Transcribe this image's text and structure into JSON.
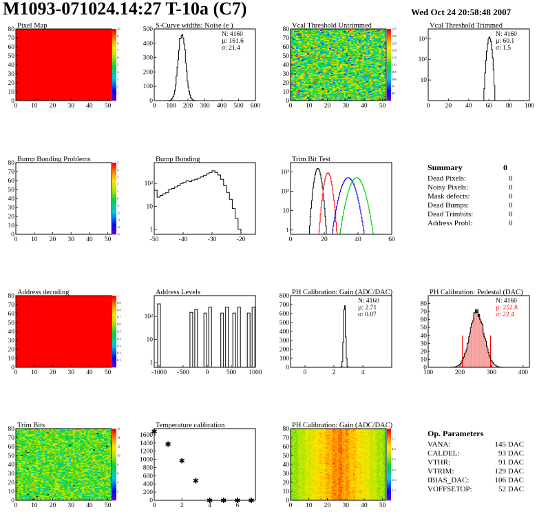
{
  "header": {
    "title": "M1093-071024.14:27 T-10a (C7)",
    "date": "Wed Oct 24 20:58:48 2007"
  },
  "summary": {
    "title": "Summary",
    "total": "0",
    "rows": [
      {
        "label": "Dead Pixels:",
        "value": "0"
      },
      {
        "label": "Noisy Pixels:",
        "value": "0"
      },
      {
        "label": "Mask defects:",
        "value": "0"
      },
      {
        "label": "Dead Bumps:",
        "value": "0"
      },
      {
        "label": "Dead Trimbits:",
        "value": "0"
      },
      {
        "label": "Address Probl:",
        "value": "0"
      }
    ]
  },
  "op_params": {
    "title": "Op. Parameters",
    "rows": [
      {
        "label": "VANA:",
        "value": "145 DAC"
      },
      {
        "label": "CALDEL:",
        "value": "93 DAC"
      },
      {
        "label": "VTHR:",
        "value": "91 DAC"
      },
      {
        "label": "VTRIM:",
        "value": "129 DAC"
      },
      {
        "label": "IBIAS_DAC:",
        "value": "106 DAC"
      },
      {
        "label": "VOFFSETOP:",
        "value": "52 DAC"
      }
    ]
  },
  "colors": {
    "red": "#ff0000",
    "blue": "#0000ff",
    "green": "#00c800",
    "pink": "#ffb0b0"
  },
  "chart_data": [
    {
      "id": "pixel-map",
      "type": "heatmap",
      "title": "Pixel Map",
      "xlim": [
        0,
        52
      ],
      "ylim": [
        0,
        80
      ],
      "xticks": [
        0,
        10,
        20,
        30,
        40,
        50
      ],
      "yticks": [
        0,
        10,
        20,
        30,
        40,
        50,
        60,
        70,
        80
      ],
      "palette": "uniform-red",
      "zlim": [
        0,
        10
      ],
      "zticks": [
        1,
        2,
        3,
        4,
        5,
        6,
        7,
        8,
        9,
        10
      ]
    },
    {
      "id": "scurve-widths",
      "type": "histogram",
      "title": "S-Curve widths: Noise (e )",
      "xlim": [
        0,
        600
      ],
      "ylim": [
        0,
        500
      ],
      "xticks": [
        0,
        100,
        200,
        300,
        400,
        500,
        600
      ],
      "yticks": [
        0,
        100,
        200,
        300,
        400,
        500
      ],
      "stats": [
        "N: 4160",
        "µ: 161.6",
        "σ: 21.4"
      ],
      "gauss": {
        "mean": 161.6,
        "sigma": 21.4,
        "peak": 480
      }
    },
    {
      "id": "vcal-untrimmed",
      "type": "heatmap",
      "title": "Vcal Threshold Untrimmed",
      "xlim": [
        0,
        52
      ],
      "ylim": [
        0,
        80
      ],
      "xticks": [
        0,
        10,
        20,
        30,
        40,
        50
      ],
      "yticks": [
        0,
        10,
        20,
        30,
        40,
        50,
        60,
        70,
        80
      ],
      "palette": "noise",
      "zlim": [
        85,
        135
      ],
      "zticks": [
        90,
        95,
        100,
        105,
        110,
        115,
        120,
        125,
        130,
        135
      ]
    },
    {
      "id": "vcal-trimmed",
      "type": "histogram",
      "title": "Vcal Threshold Trimmed",
      "log": true,
      "xlim": [
        0,
        100
      ],
      "ylim": [
        1,
        3000
      ],
      "xticks": [
        0,
        20,
        40,
        60,
        80,
        100
      ],
      "ytickvals": [
        10,
        100,
        1000
      ],
      "yticklabels": [
        "10",
        "10²",
        "10³"
      ],
      "stats": [
        "N: 4160",
        "µ: 60.1",
        "σ: 1.5"
      ],
      "gauss": {
        "mean": 60.1,
        "sigma": 1.5,
        "peak": 1200
      }
    },
    {
      "id": "bump-problems",
      "type": "heatmap",
      "title": "Bump Bonding Problems",
      "xlim": [
        0,
        52
      ],
      "ylim": [
        0,
        80
      ],
      "xticks": [
        0,
        10,
        20,
        30,
        40,
        50
      ],
      "yticks": [
        0,
        10,
        20,
        30,
        40,
        50,
        60,
        70,
        80
      ],
      "palette": "empty",
      "zlim": [
        -5,
        5
      ],
      "zticks": [
        -5,
        -4,
        -3,
        -2,
        -1,
        0,
        1,
        2,
        3,
        4,
        5
      ]
    },
    {
      "id": "bump-bonding",
      "type": "histogram",
      "title": "Bump Bonding",
      "log": true,
      "xlim": [
        -50,
        -15
      ],
      "ylim": [
        0.6,
        800
      ],
      "xticks": [
        -50,
        -40,
        -30,
        -20
      ],
      "ytickvals": [
        1,
        10,
        100
      ],
      "yticklabels": [
        "1",
        "10",
        "10²"
      ],
      "points": [
        [
          -50,
          50
        ],
        [
          -49,
          25
        ],
        [
          -48,
          30
        ],
        [
          -47,
          35
        ],
        [
          -46,
          40
        ],
        [
          -45,
          55
        ],
        [
          -44,
          60
        ],
        [
          -43,
          70
        ],
        [
          -42,
          80
        ],
        [
          -41,
          100
        ],
        [
          -40,
          110
        ],
        [
          -39,
          130
        ],
        [
          -38,
          120
        ],
        [
          -37,
          140
        ],
        [
          -36,
          150
        ],
        [
          -35,
          170
        ],
        [
          -34,
          190
        ],
        [
          -33,
          220
        ],
        [
          -32,
          260
        ],
        [
          -31,
          300
        ],
        [
          -30,
          350
        ],
        [
          -29,
          300
        ],
        [
          -28,
          230
        ],
        [
          -27,
          150
        ],
        [
          -26,
          80
        ],
        [
          -25,
          40
        ],
        [
          -24,
          20
        ],
        [
          -23,
          8
        ],
        [
          -22,
          3
        ],
        [
          -21,
          1
        ],
        [
          -20,
          0.7
        ]
      ]
    },
    {
      "id": "trim-bit-test",
      "type": "histogram",
      "title": "Trim Bit Test",
      "log": true,
      "xlim": [
        0,
        60
      ],
      "ylim": [
        0.6,
        3000
      ],
      "xticks": [
        0,
        20,
        40,
        60
      ],
      "ytickvals": [
        1,
        10,
        100,
        1000
      ],
      "yticklabels": [
        "1",
        "10",
        "10²",
        "10³"
      ],
      "series": [
        {
          "color": "#000000",
          "mean": 16,
          "sigma": 1.3,
          "peak": 1500
        },
        {
          "color": "#ff0000",
          "mean": 22,
          "sigma": 1.4,
          "peak": 900
        },
        {
          "color": "#0000ff",
          "mean": 34,
          "sigma": 2.6,
          "peak": 500
        },
        {
          "color": "#00c800",
          "mean": 39,
          "sigma": 2.7,
          "peak": 500
        }
      ]
    },
    {
      "id": "address-decoding",
      "type": "heatmap",
      "title": "Address decoding",
      "xlim": [
        0,
        52
      ],
      "ylim": [
        0,
        80
      ],
      "xticks": [
        0,
        10,
        20,
        30,
        40,
        50
      ],
      "yticks": [
        0,
        10,
        20,
        30,
        40,
        50,
        60,
        70,
        80
      ],
      "palette": "uniform-red",
      "zlim": [
        0,
        1
      ],
      "zticks": [
        0.1,
        0.2,
        0.3,
        0.4,
        0.5,
        0.6,
        0.7,
        0.8,
        0.9,
        1
      ]
    },
    {
      "id": "address-levels",
      "type": "histogram",
      "title": "Address Levels",
      "log": true,
      "xlim": [
        -1100,
        1000
      ],
      "ylim": [
        0.6,
        800
      ],
      "xticks": [
        -1000,
        -500,
        0,
        500,
        1000
      ],
      "ytickvals": [
        1,
        10,
        100
      ],
      "yticklabels": [
        "1",
        "10",
        "10²"
      ],
      "spikes": [
        -1000,
        -330,
        -230,
        -40,
        60,
        310,
        410,
        560,
        660,
        860,
        960
      ],
      "spikeH": [
        350,
        150,
        200,
        140,
        250,
        140,
        250,
        140,
        250,
        140,
        250
      ]
    },
    {
      "id": "ph-gain",
      "type": "histogram",
      "title": "PH Calibration: Gain (ADC/DAC)",
      "xlim": [
        -1,
        6
      ],
      "ylim": [
        0,
        800
      ],
      "xticks": [
        0,
        2,
        4
      ],
      "yticks": [
        0,
        100,
        200,
        300,
        400,
        500,
        600,
        700,
        800
      ],
      "stats": [
        "N: 4160",
        "µ: 2.71",
        "σ: 0.07"
      ],
      "gauss": {
        "mean": 2.71,
        "sigma": 0.07,
        "peak": 700
      }
    },
    {
      "id": "ph-pedestal",
      "type": "histogram",
      "title": "PH Calibration: Pedestal (DAC)",
      "xlim": [
        100,
        420
      ],
      "ylim": [
        0,
        90
      ],
      "xticks": [
        100,
        200,
        300,
        400
      ],
      "yticks": [
        0,
        10,
        20,
        30,
        40,
        50,
        60,
        70,
        80
      ],
      "stats": [
        "N: 4160",
        "µ: 252.8",
        "σ: 22.4"
      ],
      "statcolors": [
        "#000000",
        "#ff0000",
        "#ff0000"
      ],
      "gauss": {
        "mean": 252.8,
        "sigma": 22.4,
        "peak": 70
      },
      "cutlines": [
        208,
        297
      ]
    },
    {
      "id": "trim-bits",
      "type": "heatmap",
      "title": "Trim Bits",
      "xlim": [
        0,
        52
      ],
      "ylim": [
        0,
        80
      ],
      "xticks": [
        0,
        10,
        20,
        30,
        40,
        50
      ],
      "yticks": [
        0,
        10,
        20,
        30,
        40,
        50,
        60,
        70,
        80
      ],
      "palette": "trim",
      "zlim": [
        0,
        16
      ],
      "zticks": [
        2,
        4,
        6,
        8,
        10,
        12,
        14,
        16
      ]
    },
    {
      "id": "temperature",
      "type": "scatter",
      "title": "Temperature calibration",
      "xlim": [
        0,
        7.3
      ],
      "ylim": [
        0,
        1750
      ],
      "xticks": [
        0,
        2,
        4,
        6
      ],
      "yticks": [
        0,
        200,
        400,
        600,
        800,
        1000,
        1200,
        1400,
        1600
      ],
      "x": [
        0,
        1,
        2,
        3,
        4,
        5,
        6,
        7
      ],
      "y": [
        1680,
        1370,
        970,
        480,
        0,
        0,
        0,
        0
      ]
    },
    {
      "id": "ph-gain-map",
      "type": "heatmap",
      "title": "PH Calibration: Gain (ADC/DAC)",
      "xlim": [
        0,
        52
      ],
      "ylim": [
        0,
        80
      ],
      "xticks": [
        0,
        10,
        20,
        30,
        40,
        50
      ],
      "yticks": [
        0,
        10,
        20,
        30,
        40,
        50,
        60,
        70,
        80
      ],
      "palette": "gain",
      "zlim": [
        2.1,
        2.8
      ],
      "zticks": [
        2.2,
        2.3,
        2.4,
        2.5,
        2.6,
        2.7
      ]
    }
  ]
}
